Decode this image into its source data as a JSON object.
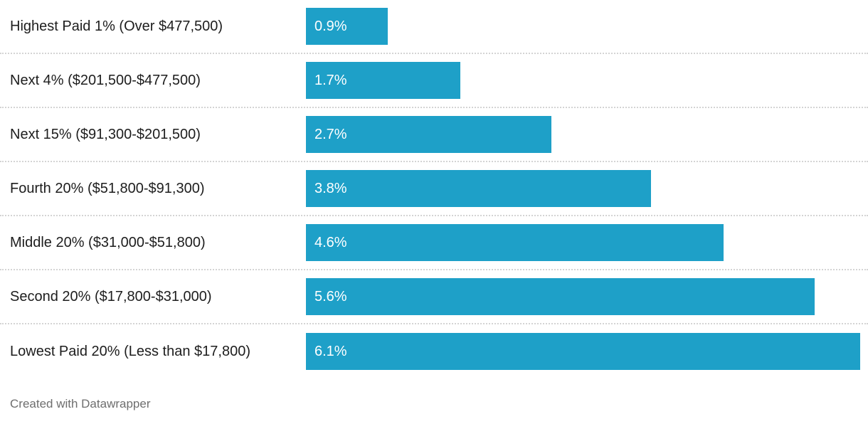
{
  "chart_data": {
    "type": "bar",
    "orientation": "horizontal",
    "categories": [
      "Highest Paid 1% (Over $477,500)",
      "Next 4% ($201,500-$477,500)",
      "Next 15% ($91,300-$201,500)",
      "Fourth 20% ($51,800-$91,300)",
      "Middle 20% ($31,000-$51,800)",
      "Second 20% ($17,800-$31,000)",
      "Lowest Paid 20% (Less than $17,800)"
    ],
    "values": [
      0.9,
      1.7,
      2.7,
      3.8,
      4.6,
      5.6,
      6.1
    ],
    "value_labels": [
      "0.9%",
      "1.7%",
      "2.7%",
      "3.8%",
      "4.6%",
      "5.6%",
      "6.1%"
    ],
    "xlim": [
      0,
      6.19
    ],
    "grid": "off",
    "legend": "none",
    "bar_color": "#1ea0c8",
    "value_label_color": "#ffffff",
    "separator_color": "#d4d4d4",
    "value_labels_position": "inside-left"
  },
  "footer": {
    "attribution": "Created with Datawrapper"
  }
}
